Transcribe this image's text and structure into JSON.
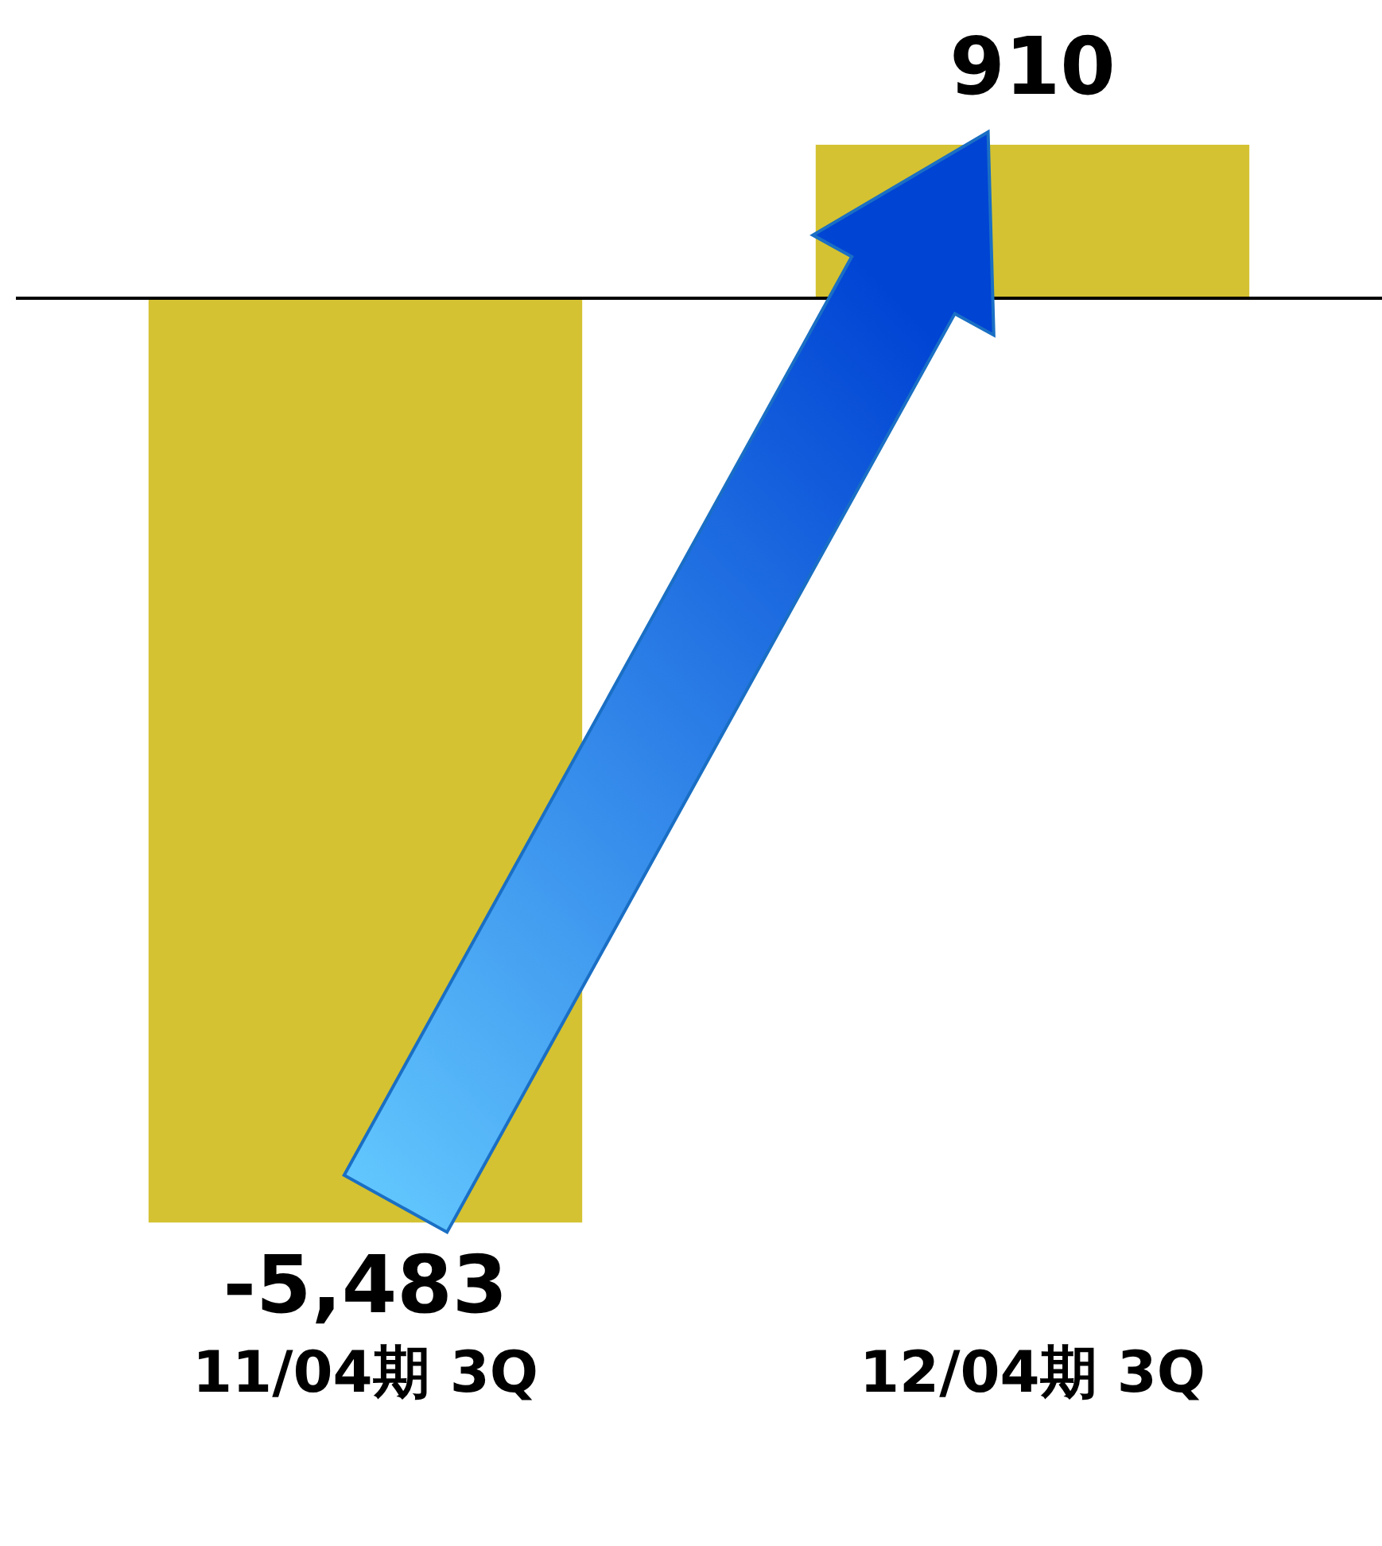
{
  "chart_data": {
    "type": "bar",
    "categories": [
      "11/04期 3Q",
      "12/04期 3Q"
    ],
    "values": [
      -5483,
      910
    ],
    "color": "#d4c232",
    "value_labels": [
      "-5,483",
      "910"
    ],
    "grid": false,
    "legend": false
  }
}
